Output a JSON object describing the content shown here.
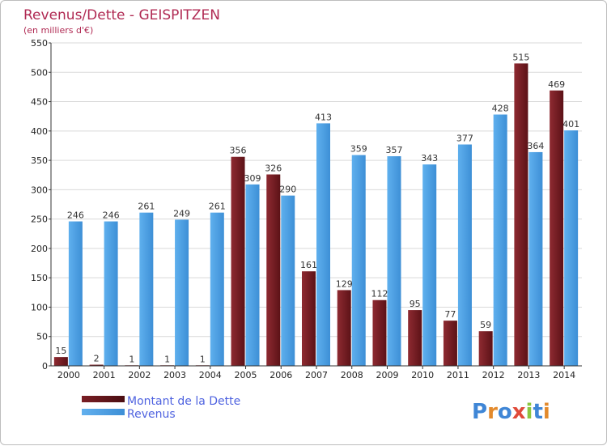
{
  "chart_data": {
    "type": "bar",
    "title": "Revenus/Dette - GEISPITZEN",
    "subtitle": "(en milliers d'€)",
    "categories": [
      "2000",
      "2001",
      "2002",
      "2003",
      "2004",
      "2005",
      "2006",
      "2007",
      "2008",
      "2009",
      "2010",
      "2011",
      "2012",
      "2013",
      "2014"
    ],
    "series": [
      {
        "name": "Montant de la Dette",
        "values": [
          15,
          2,
          1,
          1,
          1,
          356,
          326,
          161,
          129,
          112,
          95,
          77,
          59,
          515,
          469
        ],
        "color": "#7a1e24"
      },
      {
        "name": "Revenus",
        "values": [
          246,
          246,
          261,
          249,
          261,
          309,
          290,
          413,
          359,
          357,
          343,
          377,
          428,
          364,
          401
        ],
        "color": "#4ea3e6"
      }
    ],
    "value_labels": [
      [
        "15",
        "2",
        "1",
        "1",
        "1",
        "356",
        "326",
        "161",
        "129",
        "112",
        "95",
        "77",
        "59",
        "515",
        "469"
      ],
      [
        "246",
        "246",
        "261",
        "249",
        "261",
        "309",
        "290",
        "413",
        "359",
        "357",
        "343",
        "377",
        "428",
        "364",
        "401"
      ]
    ],
    "yticks": [
      0,
      50,
      100,
      150,
      200,
      250,
      300,
      350,
      400,
      450,
      500,
      550
    ],
    "ylim": [
      0,
      550
    ],
    "grid": true,
    "legend_position": "bottom-left"
  },
  "logo": {
    "text": "Proxiti",
    "colors": [
      "#3f86d6",
      "#e38a2c",
      "#3f86d6",
      "#e04a3a",
      "#8cc63f",
      "#3f86d6",
      "#e38a2c"
    ]
  }
}
